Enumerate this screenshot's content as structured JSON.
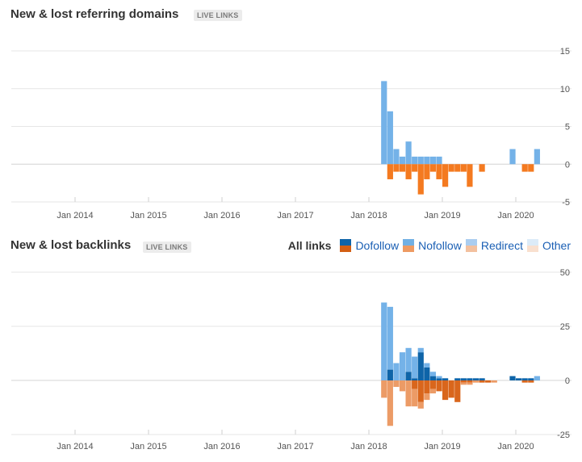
{
  "panels": [
    {
      "title": "New & lost referring domains",
      "badge": "LIVE LINKS"
    },
    {
      "title": "New & lost backlinks",
      "badge": "LIVE LINKS",
      "legend": {
        "all": "All links",
        "items": [
          {
            "label": "Dofollow",
            "colors": [
              "#0e64a8",
              "#d35f13"
            ]
          },
          {
            "label": "Nofollow",
            "colors": [
              "#71b0e4",
              "#ee9a62"
            ]
          },
          {
            "label": "Redirect",
            "colors": [
              "#aacdf0",
              "#f3c09e"
            ]
          },
          {
            "label": "Other",
            "colors": [
              "#dcebf8",
              "#f9e0cf"
            ]
          }
        ]
      }
    }
  ],
  "colors": {
    "dofollow_new": "#0e64a8",
    "nofollow_new": "#74b2e8",
    "dofollow_lost": "#d9661c",
    "nofollow_lost": "#ec9b66",
    "rd_new": "#74b2e8",
    "rd_lost": "#f47a20"
  },
  "chart_data": [
    {
      "type": "bar",
      "title": "New & lost referring domains",
      "x_ticks": [
        "Jan 2014",
        "Jan 2015",
        "Jan 2016",
        "Jan 2017",
        "Jan 2018",
        "Jan 2019",
        "Jan 2020"
      ],
      "y_ticks": [
        15,
        10,
        5,
        0,
        -5
      ],
      "ylim": [
        -5,
        15
      ],
      "grid": true,
      "x": [
        "2018-03",
        "2018-04",
        "2018-05",
        "2018-06",
        "2018-07",
        "2018-08",
        "2018-09",
        "2018-10",
        "2018-11",
        "2018-12",
        "2019-01",
        "2019-02",
        "2019-03",
        "2019-04",
        "2019-05",
        "2019-06",
        "2019-07",
        "2019-08",
        "2019-09",
        "2019-10",
        "2019-11",
        "2019-12",
        "2020-01",
        "2020-02",
        "2020-03",
        "2020-04"
      ],
      "series": [
        {
          "name": "New",
          "values": [
            11,
            7,
            2,
            1,
            3,
            1,
            1,
            1,
            1,
            1,
            0,
            0,
            0,
            0,
            0,
            0,
            0,
            0,
            0,
            0,
            0,
            2,
            0,
            0,
            0,
            2
          ]
        },
        {
          "name": "Lost",
          "values": [
            0,
            -2,
            -1,
            -1,
            -2,
            -1,
            -4,
            -2,
            -1,
            -2,
            -3,
            -1,
            -1,
            -1,
            -3,
            0,
            -1,
            0,
            0,
            0,
            0,
            0,
            0,
            -1,
            -1,
            0
          ]
        }
      ]
    },
    {
      "type": "bar",
      "title": "New & lost backlinks",
      "x_ticks": [
        "Jan 2014",
        "Jan 2015",
        "Jan 2016",
        "Jan 2017",
        "Jan 2018",
        "Jan 2019",
        "Jan 2020"
      ],
      "y_ticks": [
        50,
        25,
        0,
        -25
      ],
      "ylim": [
        -25,
        50
      ],
      "grid": true,
      "x": [
        "2018-03",
        "2018-04",
        "2018-05",
        "2018-06",
        "2018-07",
        "2018-08",
        "2018-09",
        "2018-10",
        "2018-11",
        "2018-12",
        "2019-01",
        "2019-02",
        "2019-03",
        "2019-04",
        "2019-05",
        "2019-06",
        "2019-07",
        "2019-08",
        "2019-09",
        "2019-10",
        "2019-11",
        "2019-12",
        "2020-01",
        "2020-02",
        "2020-03",
        "2020-04"
      ],
      "series": [
        {
          "name": "Dofollow",
          "values": [
            0,
            5,
            0,
            0,
            4,
            1,
            13,
            6,
            2,
            1,
            1,
            0,
            1,
            1,
            1,
            1,
            1,
            0,
            0,
            0,
            0,
            2,
            1,
            1,
            1,
            0
          ]
        },
        {
          "name": "Nofollow",
          "values": [
            36,
            29,
            8,
            13,
            11,
            10,
            2,
            2,
            2,
            1,
            0,
            0,
            0,
            0,
            0,
            0,
            0,
            0,
            0,
            0,
            0,
            0,
            0,
            0,
            0,
            2
          ]
        },
        {
          "name": "Dofollow",
          "values": [
            0,
            0,
            0,
            0,
            0,
            -4,
            -10,
            -6,
            -4,
            -5,
            -9,
            -8,
            -10,
            -1,
            -1,
            0,
            -1,
            -1,
            0,
            0,
            0,
            0,
            0,
            -1,
            -1,
            0
          ]
        },
        {
          "name": "Nofollow",
          "values": [
            -8,
            -21,
            -3,
            -5,
            -12,
            -8,
            -3,
            -3,
            -2,
            0,
            0,
            0,
            0,
            -1,
            -1,
            -1,
            0,
            0,
            -1,
            0,
            0,
            0,
            0,
            0,
            0,
            0
          ]
        }
      ]
    }
  ]
}
